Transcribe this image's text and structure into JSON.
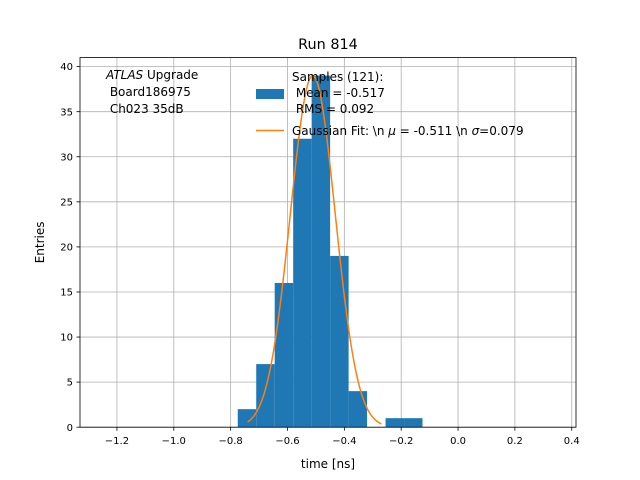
{
  "chart_data": {
    "type": "bar",
    "title": "Run 814",
    "xlabel": "time [ns]",
    "ylabel": "Entries",
    "xlim": [
      -1.33,
      0.415
    ],
    "ylim": [
      0,
      41
    ],
    "grid": true,
    "xticks": [
      -1.2,
      -1.0,
      -0.8,
      -0.6,
      -0.4,
      -0.2,
      0.0,
      0.2,
      0.4
    ],
    "xtick_labels": [
      "−1.2",
      "−1.0",
      "−0.8",
      "−0.6",
      "−0.4",
      "−0.2",
      "0.0",
      "0.2",
      "0.4"
    ],
    "yticks": [
      0,
      5,
      10,
      15,
      20,
      25,
      30,
      35,
      40
    ],
    "ytick_labels": [
      "0",
      "5",
      "10",
      "15",
      "20",
      "25",
      "30",
      "35",
      "40"
    ],
    "annotation": {
      "experiment": "ATLAS",
      "line1_rest": " Upgrade",
      "line2": " Board186975",
      "line3": " Ch023 35dB"
    },
    "histogram": {
      "name": "Samples (121):\n Mean = -0.517\n RMS = 0.092",
      "bin_edges": [
        -0.775,
        -0.71,
        -0.645,
        -0.58,
        -0.515,
        -0.45,
        -0.385,
        -0.32,
        -0.255,
        -0.19,
        -0.125
      ],
      "counts": [
        2,
        7,
        16,
        32,
        39,
        19,
        4,
        0,
        1,
        1
      ],
      "color": "#1f77b4"
    },
    "fit": {
      "name": "Gaussian Fit: \\n μ = -0.511 \\n σ=0.079",
      "mu": -0.511,
      "sigma": 0.079,
      "amplitude": 39.0,
      "x_range": [
        -0.74,
        -0.27
      ],
      "color": "#ff7f0e"
    },
    "legend": {
      "placement": "top-right",
      "hist_line1": "Samples (121):",
      "hist_line2": " Mean = -0.517",
      "hist_line3": " RMS = 0.092",
      "fit_prefix": "Gaussian Fit: \\n ",
      "fit_mu_symbol": "μ",
      "fit_mu_value": " = -0.511 \\n ",
      "fit_sigma_symbol": "σ",
      "fit_sigma_value": "=0.079"
    }
  }
}
